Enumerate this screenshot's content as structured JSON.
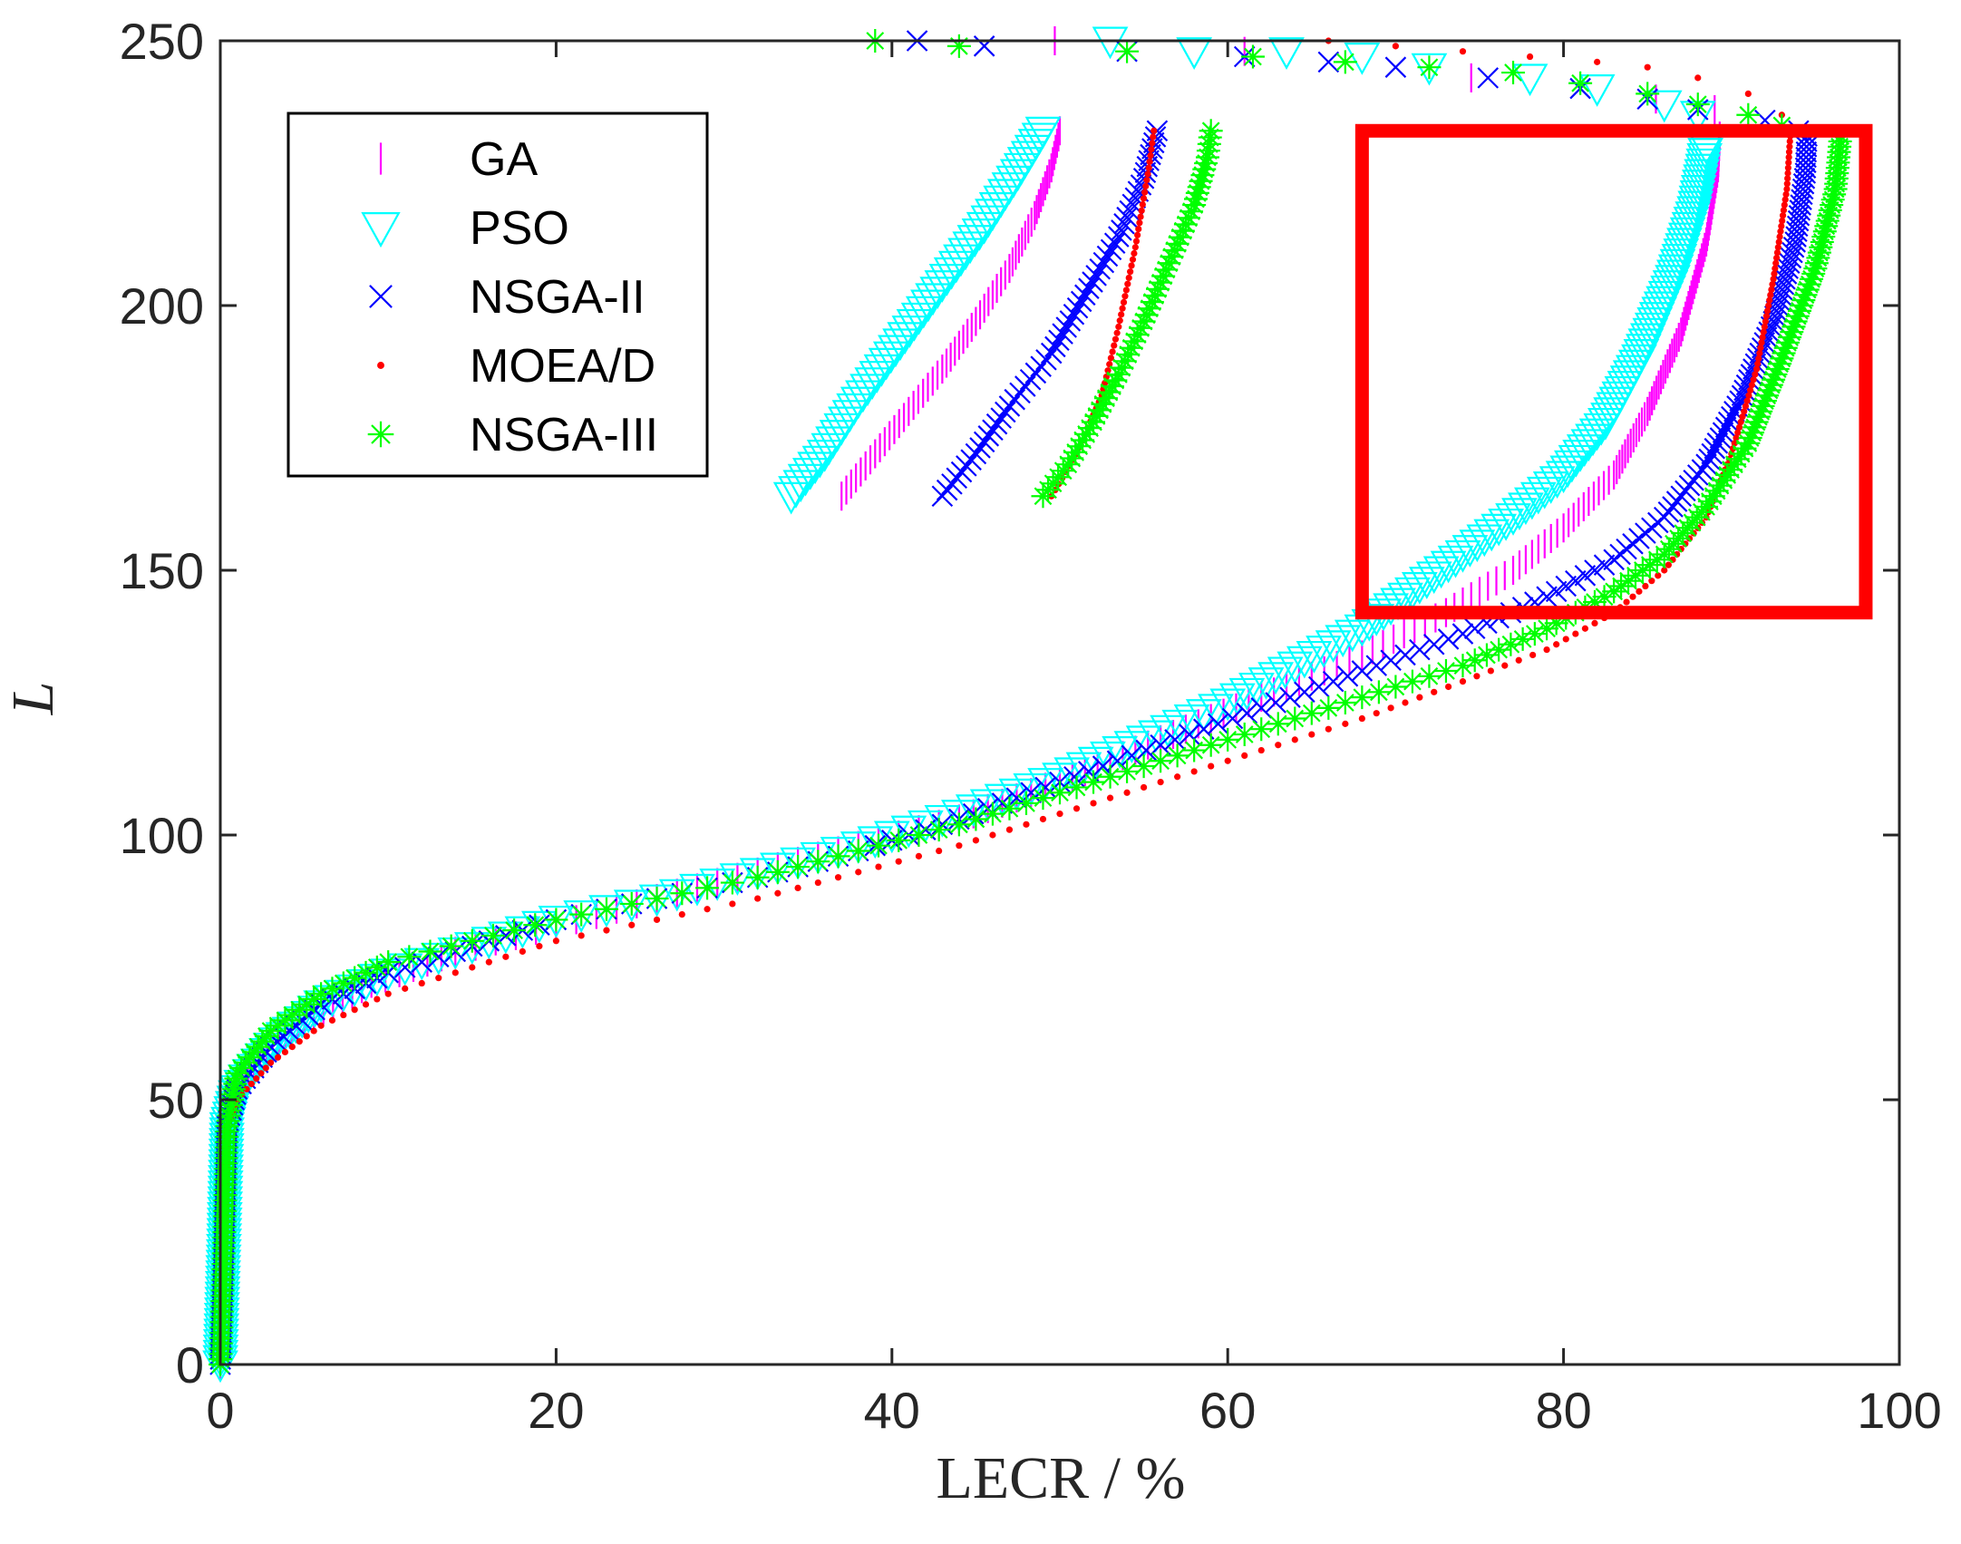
{
  "chart_data": {
    "type": "scatter",
    "title": "",
    "xlabel": "LECR / %",
    "ylabel": "L",
    "xlim": [
      0,
      100
    ],
    "ylim": [
      0,
      250
    ],
    "xticks": [
      0,
      20,
      40,
      60,
      80,
      100
    ],
    "yticks": [
      0,
      50,
      100,
      150,
      200,
      250
    ],
    "xtick_labels": [
      "0",
      "20",
      "40",
      "60",
      "80",
      "100"
    ],
    "ytick_labels": [
      "0",
      "50",
      "100",
      "150",
      "200",
      "250"
    ],
    "grid": false,
    "legend_position": "top-left",
    "series": [
      {
        "name": "GA",
        "marker": "vertical-line",
        "color": "#ff00ff",
        "points": [
          [
            0,
            0
          ],
          [
            0.2,
            20
          ],
          [
            0.4,
            45
          ],
          [
            0.8,
            50
          ],
          [
            2,
            57
          ],
          [
            5,
            65
          ],
          [
            9,
            72
          ],
          [
            14,
            78
          ],
          [
            20,
            83
          ],
          [
            26,
            88
          ],
          [
            32,
            93
          ],
          [
            38,
            98
          ],
          [
            44,
            103
          ],
          [
            50,
            110
          ],
          [
            56,
            118
          ],
          [
            62,
            126
          ],
          [
            68,
            134
          ],
          [
            73,
            142
          ],
          [
            77,
            150
          ],
          [
            80,
            158
          ],
          [
            83,
            168
          ],
          [
            85,
            180
          ],
          [
            87,
            195
          ],
          [
            88.5,
            212
          ],
          [
            89.2,
            226
          ],
          [
            89.3,
            232
          ]
        ],
        "branch_low": [
          [
            37,
            164
          ],
          [
            39,
            172
          ],
          [
            41,
            180
          ],
          [
            43,
            188
          ],
          [
            45,
            197
          ],
          [
            47,
            207
          ],
          [
            48.5,
            217
          ],
          [
            49.5,
            226
          ],
          [
            50,
            233
          ]
        ],
        "top_row": [
          [
            49.7,
            250
          ],
          [
            61,
            248
          ],
          [
            74.5,
            243
          ],
          [
            85.5,
            239
          ],
          [
            89,
            237
          ]
        ]
      },
      {
        "name": "PSO",
        "marker": "triangle-down",
        "color": "#00ffff",
        "points": [
          [
            0,
            0
          ],
          [
            0.2,
            20
          ],
          [
            0.4,
            45
          ],
          [
            1,
            52
          ],
          [
            3,
            60
          ],
          [
            6,
            68
          ],
          [
            10,
            74
          ],
          [
            15,
            79
          ],
          [
            20,
            84
          ],
          [
            26,
            88
          ],
          [
            32,
            93
          ],
          [
            38,
            98
          ],
          [
            44,
            104
          ],
          [
            50,
            111
          ],
          [
            55,
            118
          ],
          [
            60,
            125
          ],
          [
            64,
            132
          ],
          [
            68,
            139
          ],
          [
            71,
            146
          ],
          [
            74,
            153
          ],
          [
            77,
            160
          ],
          [
            80,
            168
          ],
          [
            82.5,
            178
          ],
          [
            84.5,
            190
          ],
          [
            86.5,
            205
          ],
          [
            87.8,
            218
          ],
          [
            88.3,
            226
          ],
          [
            88.5,
            230
          ]
        ],
        "branch_low": [
          [
            34,
            164
          ],
          [
            36,
            172
          ],
          [
            38,
            182
          ],
          [
            40.5,
            193
          ],
          [
            43,
            204
          ],
          [
            45.5,
            215
          ],
          [
            47.5,
            225
          ],
          [
            49,
            233
          ]
        ],
        "top_row": [
          [
            53,
            250
          ],
          [
            58,
            248
          ],
          [
            63.5,
            248
          ],
          [
            68,
            247
          ],
          [
            72,
            245
          ],
          [
            78,
            243
          ],
          [
            82,
            241
          ],
          [
            86,
            238
          ],
          [
            88,
            236
          ]
        ]
      },
      {
        "name": "NSGA-II",
        "marker": "x",
        "color": "#0000ff",
        "points": [
          [
            0,
            0
          ],
          [
            0.2,
            20
          ],
          [
            0.4,
            45
          ],
          [
            1,
            52
          ],
          [
            3,
            60
          ],
          [
            6,
            68
          ],
          [
            10,
            74
          ],
          [
            15,
            79
          ],
          [
            20,
            84
          ],
          [
            26,
            88
          ],
          [
            32,
            92
          ],
          [
            38,
            97
          ],
          [
            44,
            103
          ],
          [
            50,
            110
          ],
          [
            56,
            117
          ],
          [
            62,
            124
          ],
          [
            68,
            131
          ],
          [
            74,
            138
          ],
          [
            79,
            145
          ],
          [
            83,
            152
          ],
          [
            86,
            160
          ],
          [
            88.5,
            170
          ],
          [
            90.5,
            182
          ],
          [
            92.5,
            197
          ],
          [
            93.8,
            212
          ],
          [
            94.4,
            225
          ],
          [
            94.5,
            232
          ]
        ],
        "branch_low": [
          [
            43,
            164
          ],
          [
            45,
            172
          ],
          [
            47,
            181
          ],
          [
            49.5,
            191
          ],
          [
            51.5,
            202
          ],
          [
            53.5,
            213
          ],
          [
            55,
            224
          ],
          [
            55.8,
            233
          ]
        ],
        "top_row": [
          [
            41.5,
            250
          ],
          [
            45.5,
            249
          ],
          [
            54,
            248
          ],
          [
            61,
            247
          ],
          [
            66,
            246
          ],
          [
            70,
            245
          ],
          [
            75.5,
            243
          ],
          [
            81,
            241
          ],
          [
            85,
            239
          ],
          [
            88,
            237
          ],
          [
            92,
            235
          ],
          [
            94,
            233
          ]
        ]
      },
      {
        "name": "MOEA/D",
        "marker": "dot",
        "color": "#ff0000",
        "points": [
          [
            0,
            0
          ],
          [
            0.2,
            20
          ],
          [
            0.4,
            45
          ],
          [
            1,
            50
          ],
          [
            3,
            57
          ],
          [
            6,
            64
          ],
          [
            10,
            70
          ],
          [
            15,
            75
          ],
          [
            20,
            80
          ],
          [
            26,
            84
          ],
          [
            32,
            88
          ],
          [
            38,
            93
          ],
          [
            44,
            98
          ],
          [
            50,
            104
          ],
          [
            56,
            110
          ],
          [
            62,
            116
          ],
          [
            68,
            122
          ],
          [
            74,
            129
          ],
          [
            79,
            135
          ],
          [
            83,
            142
          ],
          [
            86,
            150
          ],
          [
            88.5,
            160
          ],
          [
            90,
            172
          ],
          [
            91.5,
            188
          ],
          [
            92.5,
            205
          ],
          [
            93.3,
            222
          ],
          [
            93.5,
            232
          ]
        ],
        "branch_low": [
          [
            49.5,
            164
          ],
          [
            51,
            172
          ],
          [
            52.5,
            183
          ],
          [
            53.5,
            196
          ],
          [
            54.5,
            211
          ],
          [
            55.3,
            226
          ],
          [
            55.6,
            233
          ]
        ],
        "top_row": [
          [
            66,
            250
          ],
          [
            70,
            249
          ],
          [
            74,
            248
          ],
          [
            78,
            247
          ],
          [
            82,
            246
          ],
          [
            85,
            245
          ],
          [
            88,
            243
          ],
          [
            91,
            240
          ],
          [
            93,
            236
          ]
        ]
      },
      {
        "name": "NSGA-III",
        "marker": "asterisk",
        "color": "#00ff00",
        "points": [
          [
            0,
            0
          ],
          [
            0.2,
            20
          ],
          [
            0.4,
            45
          ],
          [
            1,
            55
          ],
          [
            3,
            63
          ],
          [
            6,
            70
          ],
          [
            10,
            76
          ],
          [
            15,
            80
          ],
          [
            20,
            84
          ],
          [
            26,
            88
          ],
          [
            32,
            92
          ],
          [
            38,
            97
          ],
          [
            44,
            102
          ],
          [
            50,
            108
          ],
          [
            56,
            114
          ],
          [
            62,
            120
          ],
          [
            68,
            126
          ],
          [
            74,
            132
          ],
          [
            79,
            139
          ],
          [
            83,
            146
          ],
          [
            86,
            153
          ],
          [
            88.5,
            162
          ],
          [
            91,
            174
          ],
          [
            93,
            190
          ],
          [
            95,
            207
          ],
          [
            96.2,
            222
          ],
          [
            96.5,
            232
          ]
        ],
        "branch_low": [
          [
            49,
            164
          ],
          [
            50.5,
            170
          ],
          [
            52,
            178
          ],
          [
            53.5,
            187
          ],
          [
            55,
            197
          ],
          [
            56.5,
            208
          ],
          [
            58,
            219
          ],
          [
            58.8,
            228
          ],
          [
            59,
            233
          ]
        ],
        "top_row": [
          [
            39,
            250
          ],
          [
            44,
            249
          ],
          [
            54,
            248
          ],
          [
            61.5,
            247
          ],
          [
            67,
            246
          ],
          [
            72,
            245
          ],
          [
            77,
            244
          ],
          [
            81,
            242
          ],
          [
            85,
            240
          ],
          [
            88,
            238
          ],
          [
            91,
            236
          ],
          [
            93,
            234
          ]
        ]
      }
    ],
    "annotation": {
      "type": "highlight-rectangle",
      "color": "#ff0000",
      "x_range": [
        68,
        98
      ],
      "y_range": [
        142,
        233
      ]
    }
  }
}
